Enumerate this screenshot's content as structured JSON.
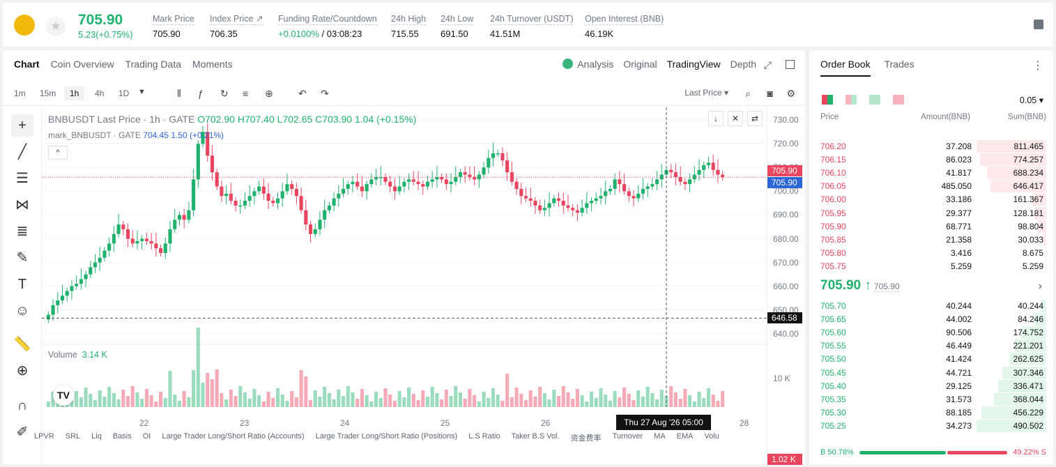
{
  "header": {
    "last_price": "705.90",
    "change": "5.23(+0.75%)",
    "stats": [
      {
        "label": "Mark Price",
        "value": "705.90"
      },
      {
        "label": "Index Price ↗",
        "value": "706.35"
      },
      {
        "label": "Funding Rate/Countdown",
        "value_green": "+0.0100%",
        "value": " / 03:08:23"
      },
      {
        "label": "24h High",
        "value": "715.55"
      },
      {
        "label": "24h Low",
        "value": "691.50"
      },
      {
        "label": "24h Turnover (USDT)",
        "value": "41.51M"
      },
      {
        "label": "Open Interest (BNB)",
        "value": "46.19K"
      }
    ]
  },
  "chart_tabs": [
    "Chart",
    "Coin Overview",
    "Trading Data",
    "Moments"
  ],
  "view_tabs": [
    "Analysis",
    "Original",
    "TradingView",
    "Depth"
  ],
  "timeframes": [
    "1m",
    "15m",
    "1h",
    "4h",
    "1D"
  ],
  "price_type": "Last Price",
  "legend": {
    "symbol": "BNBUSDT Last Price · 1h · GATE",
    "o": "O702.90",
    "h": "H707.40",
    "l": "L702.65",
    "c": "C703.90",
    "chg": "1.04 (+0.15%)",
    "mark_name": "mark_BNBUSDT · GATE",
    "mark_val": "704.45",
    "mark_chg": "1.50 (+0.21%)"
  },
  "volume_label": "Volume",
  "volume_value": "3.14 K",
  "chart_data": {
    "type": "candlestick",
    "yticks": [
      "730.00",
      "720.00",
      "710.00",
      "700.00",
      "690.00",
      "680.00",
      "670.00",
      "660.00",
      "650.00",
      "640.00"
    ],
    "ylim": [
      637,
      733
    ],
    "xticks": [
      "22",
      "23",
      "24",
      "25",
      "26",
      "28"
    ],
    "last_price_tag": "705.90",
    "mark_price_tag": "705.90",
    "crosshair_price": "646.58",
    "crosshair_time": "Thu 27 Aug '26   05:00",
    "volume_ticks": [
      "10 K"
    ],
    "volume_tag": "1.02 K",
    "closes": [
      648,
      652,
      654,
      656,
      658,
      660,
      661,
      663,
      665,
      668,
      670,
      672,
      675,
      678,
      682,
      686,
      684,
      680,
      678,
      679,
      680,
      679,
      678,
      676,
      674,
      678,
      684,
      688,
      690,
      688,
      692,
      705,
      720,
      725,
      715,
      708,
      702,
      698,
      699,
      696,
      694,
      694,
      696,
      698,
      700,
      702,
      699,
      696,
      695,
      697,
      700,
      703,
      701,
      698,
      692,
      686,
      682,
      684,
      688,
      692,
      694,
      697,
      699,
      701,
      703,
      704,
      702,
      700,
      703,
      705,
      706,
      706,
      704,
      702,
      700,
      702,
      704,
      705,
      704,
      703,
      702,
      704,
      705,
      706,
      705,
      703,
      704,
      706,
      708,
      707,
      706,
      705,
      707,
      710,
      714,
      716,
      716,
      713,
      708,
      704,
      701,
      698,
      697,
      696,
      694,
      692,
      693,
      695,
      697,
      696,
      694,
      693,
      692,
      691,
      693,
      695,
      696,
      697,
      698,
      700,
      701,
      705,
      703,
      700,
      698,
      697,
      699,
      701,
      702,
      703,
      705,
      707,
      709,
      708,
      706,
      704,
      703,
      705,
      707,
      709,
      711,
      712,
      709,
      707,
      706
    ]
  },
  "order_book": {
    "tabs": [
      "Order Book",
      "Trades"
    ],
    "precision": "0.05 ▾",
    "headers": [
      "Price",
      "Amount(BNB)",
      "Sum(BNB)"
    ],
    "asks": [
      {
        "price": "706.20",
        "amount": "37.208",
        "sum": "811.465",
        "depth": 1.0
      },
      {
        "price": "706.15",
        "amount": "86.023",
        "sum": "774.257",
        "depth": 0.954
      },
      {
        "price": "706.10",
        "amount": "41.817",
        "sum": "688.234",
        "depth": 0.848
      },
      {
        "price": "706.05",
        "amount": "485.050",
        "sum": "646.417",
        "depth": 0.797
      },
      {
        "price": "706.00",
        "amount": "33.186",
        "sum": "161.367",
        "depth": 0.199
      },
      {
        "price": "705.95",
        "amount": "29.377",
        "sum": "128.181",
        "depth": 0.158
      },
      {
        "price": "705.90",
        "amount": "68.771",
        "sum": "98.804",
        "depth": 0.122
      },
      {
        "price": "705.85",
        "amount": "21.358",
        "sum": "30.033",
        "depth": 0.037
      },
      {
        "price": "705.80",
        "amount": "3.416",
        "sum": "8.675",
        "depth": 0.011
      },
      {
        "price": "705.75",
        "amount": "5.259",
        "sum": "5.259",
        "depth": 0.006
      }
    ],
    "mid_price": "705.90",
    "mid_arrow": "↑",
    "mark_price": "705.90",
    "bids": [
      {
        "price": "705.70",
        "amount": "40.244",
        "sum": "40.244",
        "depth": 0.082
      },
      {
        "price": "705.65",
        "amount": "44.002",
        "sum": "84.246",
        "depth": 0.172
      },
      {
        "price": "705.60",
        "amount": "90.506",
        "sum": "174.752",
        "depth": 0.356
      },
      {
        "price": "705.55",
        "amount": "46.449",
        "sum": "221.201",
        "depth": 0.451
      },
      {
        "price": "705.50",
        "amount": "41.424",
        "sum": "262.625",
        "depth": 0.535
      },
      {
        "price": "705.45",
        "amount": "44.721",
        "sum": "307.346",
        "depth": 0.627
      },
      {
        "price": "705.40",
        "amount": "29.125",
        "sum": "336.471",
        "depth": 0.686
      },
      {
        "price": "705.35",
        "amount": "31.573",
        "sum": "368.044",
        "depth": 0.75
      },
      {
        "price": "705.30",
        "amount": "88.185",
        "sum": "456.229",
        "depth": 0.93
      },
      {
        "price": "705.25",
        "amount": "34.273",
        "sum": "490.502",
        "depth": 1.0
      }
    ],
    "buy_ratio": "B 50.78%",
    "sell_ratio": "49.22% S"
  },
  "indicators": [
    "LPVR",
    "SRL",
    "Liq",
    "Basis",
    "OI",
    "Large Trader Long/Short Ratio (Accounts)",
    "Large Trader Long/Short Ratio (Positions)",
    "L.S Ratio",
    "Taker B.S Vol.",
    "资金费率",
    "Turnover",
    "MA",
    "EMA",
    "Volu"
  ],
  "colors": {
    "up": "#20b26c",
    "down": "#e9455e"
  }
}
